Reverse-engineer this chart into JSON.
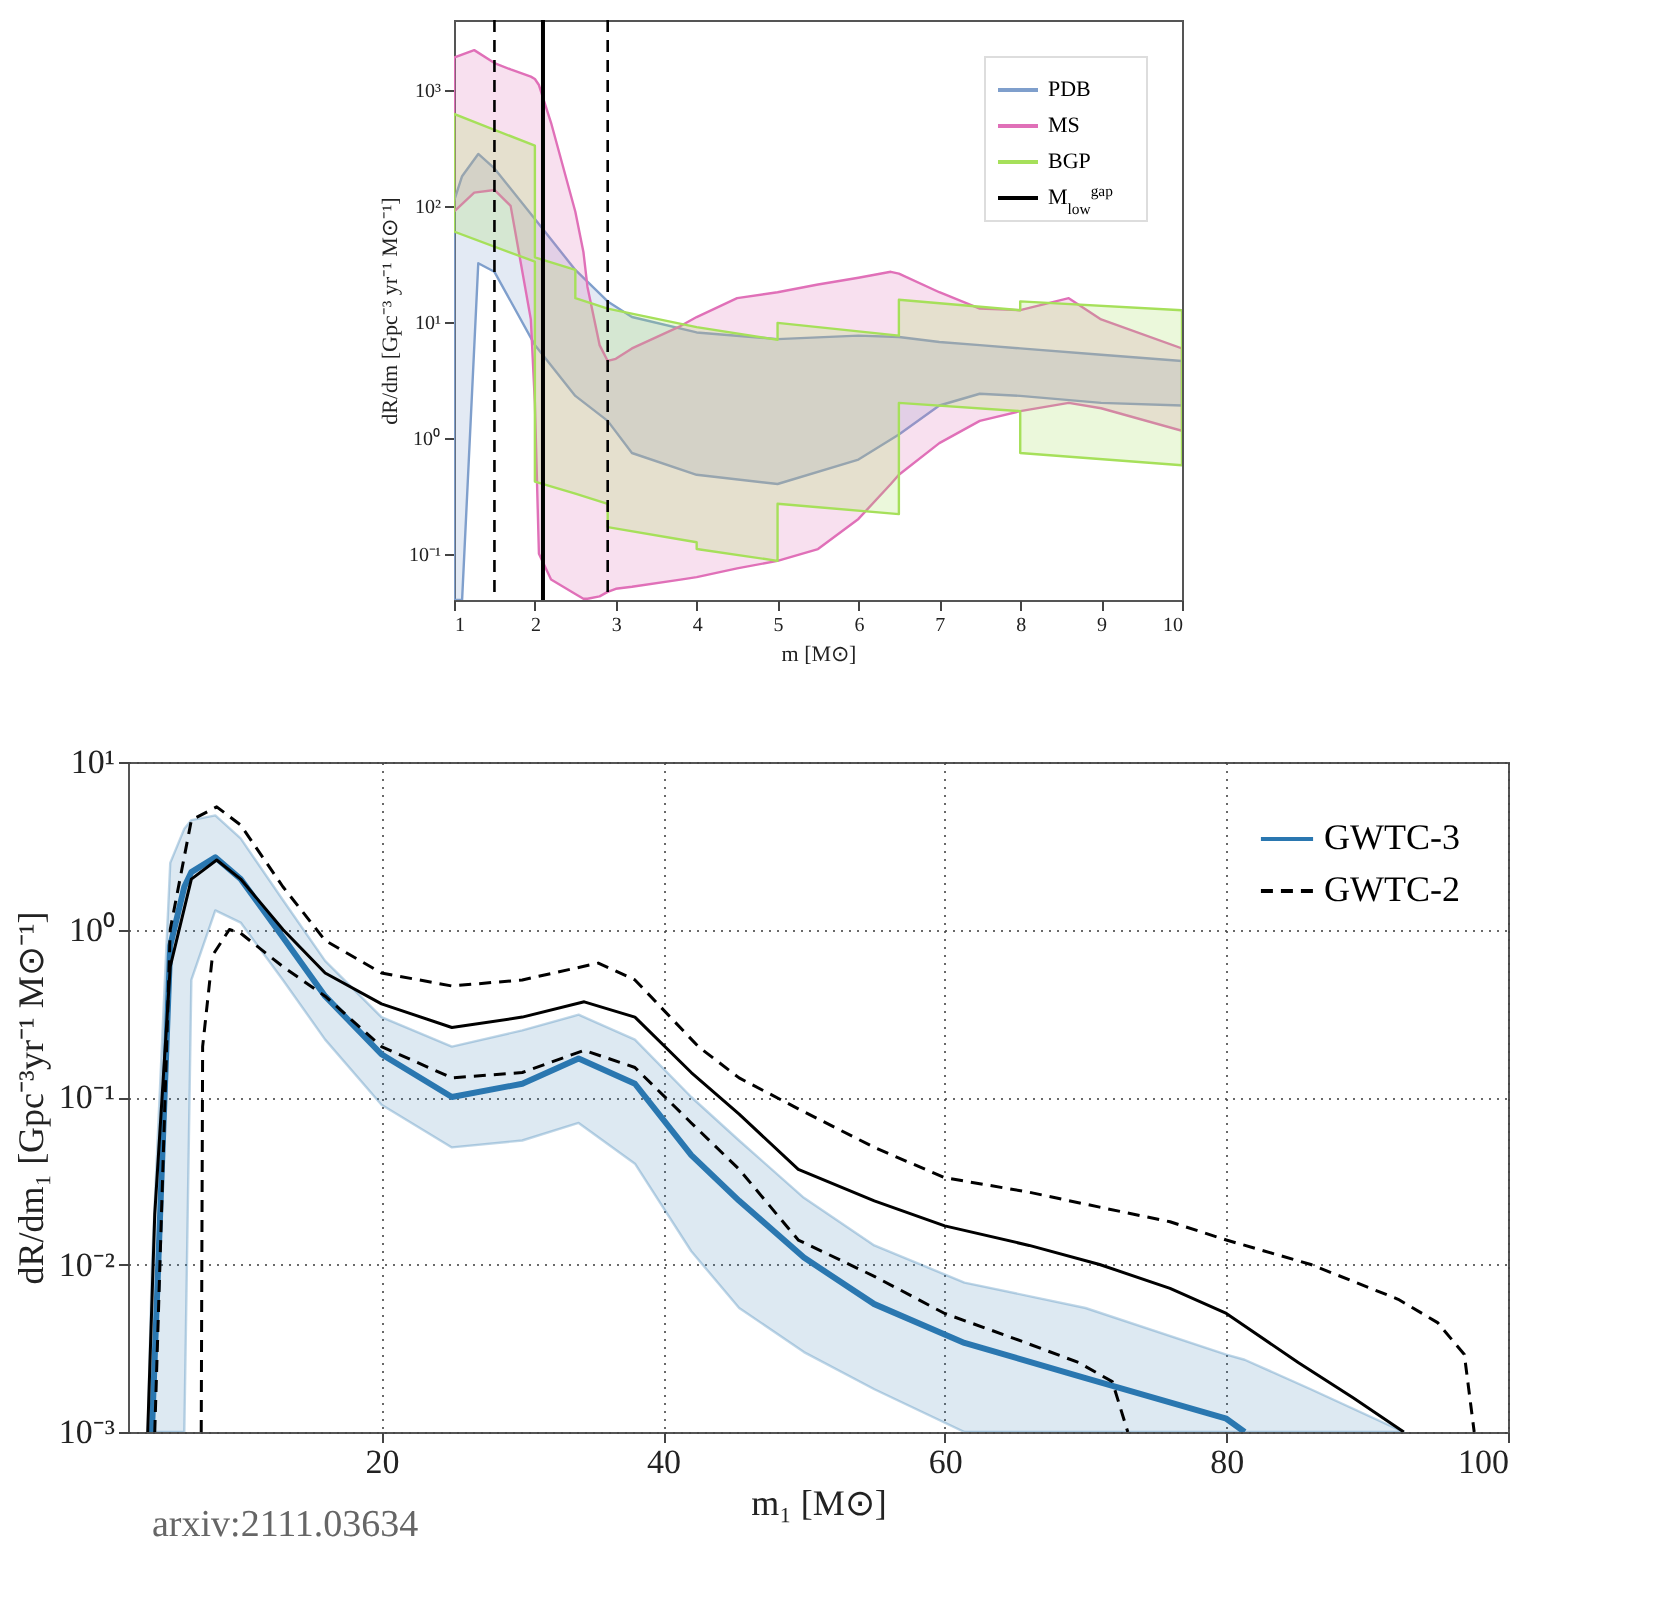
{
  "chart_data": [
    {
      "type": "line",
      "xlabel": "m [M⊙]",
      "ylabel": "dR/dm [Gpc⁻³ yr⁻¹ M⊙⁻¹]",
      "log": "y",
      "grid": false,
      "legend": "top right",
      "xlim": [
        1,
        10
      ],
      "xticks": [
        1,
        2,
        3,
        4,
        5,
        6,
        7,
        8,
        9,
        10
      ],
      "ylim": [
        0.04,
        4000
      ],
      "yticks": [
        {
          "value": 0.1,
          "label": "10⁻¹"
        },
        {
          "value": 1,
          "label": "10⁰"
        },
        {
          "value": 10,
          "label": "10¹"
        },
        {
          "value": 100,
          "label": "10²"
        },
        {
          "value": 1000,
          "label": "10³"
        }
      ],
      "series": [
        {
          "name": "PDB",
          "color": "#7f9fcc",
          "x": [
            1,
            1.1,
            1.3,
            1.5,
            2,
            2.5,
            2.9,
            3.2,
            4,
            5,
            6,
            6.5,
            7,
            7.5,
            8,
            9,
            10
          ],
          "values": [
            null,
            null,
            null,
            null,
            null,
            null,
            null,
            null,
            null,
            null,
            null,
            null,
            null,
            null,
            null,
            null,
            null
          ],
          "upper": [
            110,
            180,
            280,
            210,
            77,
            28,
            15,
            11,
            8.1,
            7.1,
            7.6,
            7.4,
            6.7,
            6.3,
            5.9,
            5.2,
            4.6
          ],
          "lower": [
            0.04,
            0.04,
            32,
            27,
            6.3,
            2.3,
            1.4,
            0.74,
            0.48,
            0.4,
            0.65,
            1.07,
            1.9,
            2.4,
            2.3,
            2.0,
            1.9
          ]
        },
        {
          "name": "MS",
          "color": "#e070b8",
          "x": [
            1,
            1.25,
            1.5,
            1.7,
            1.95,
            2,
            2.05,
            2.2,
            2.5,
            2.6,
            2.65,
            2.8,
            2.9,
            3,
            3.2,
            3.8,
            4,
            4.5,
            5,
            5.5,
            6,
            6.4,
            6.5,
            7,
            7.5,
            8,
            8.6,
            9,
            10
          ],
          "values": [
            null,
            null,
            null,
            null,
            null,
            null,
            null,
            null,
            null,
            null,
            null,
            null,
            null,
            null,
            null,
            null,
            null,
            null,
            null,
            null,
            null,
            null,
            null,
            null,
            null,
            null,
            null,
            null,
            null
          ],
          "upper": [
            1900,
            2200,
            1700,
            1500,
            1300,
            1240,
            1100,
            520,
            89,
            40,
            20,
            6.3,
            4.6,
            4.8,
            5.9,
            9.2,
            11,
            16,
            18,
            21,
            24,
            27,
            26,
            18,
            13,
            12.6,
            16,
            10.5,
            5.9
          ],
          "lower": [
            89,
            130,
            137,
            100,
            10.5,
            2,
            0.1,
            0.06,
            0.045,
            0.041,
            0.041,
            0.043,
            0.047,
            0.05,
            0.052,
            0.06,
            0.063,
            0.075,
            0.087,
            0.11,
            0.2,
            0.4,
            0.48,
            0.9,
            1.4,
            1.7,
            2.0,
            1.8,
            1.15
          ]
        },
        {
          "name": "BGP",
          "color": "#a6e05a",
          "x": [
            1,
            2,
            2,
            2.5,
            2.5,
            2.9,
            2.9,
            4,
            4,
            5,
            5,
            6.5,
            6.5,
            8,
            8,
            10
          ],
          "values": [
            null,
            null,
            null,
            null,
            null,
            null,
            null,
            null,
            null,
            null,
            null,
            null,
            null,
            null,
            null,
            null
          ],
          "upper": [
            620,
            330,
            36,
            28,
            16,
            13,
            13,
            9,
            9,
            7,
            9.8,
            7.6,
            15.5,
            12.6,
            15,
            12.6
          ],
          "lower": [
            60,
            33,
            0.42,
            0.33,
            0.33,
            0.27,
            0.17,
            0.126,
            0.11,
            0.087,
            0.27,
            0.22,
            2.0,
            1.7,
            0.74,
            0.58
          ]
        }
      ],
      "ref_lines": [
        {
          "axis": "x",
          "value": 1.5,
          "color": "#000000",
          "line_style": "dashed"
        },
        {
          "axis": "x",
          "value": 2.1,
          "label": "M$_{low}$$^{gap}$",
          "color": "#000000",
          "line_style": "solid"
        },
        {
          "axis": "x",
          "value": 2.9,
          "color": "#000000",
          "line_style": "dashed"
        }
      ]
    },
    {
      "type": "line",
      "xlabel": "m₁ [M⊙]",
      "ylabel": "dR/dm₁ [Gpc⁻³yr⁻¹ M⊙⁻¹]",
      "log": "y",
      "grid": true,
      "legend": "top right",
      "xlim": [
        2,
        100
      ],
      "xticks": [
        20,
        40,
        60,
        80,
        100
      ],
      "ylim": [
        0.001,
        10
      ],
      "yticks": [
        {
          "value": 0.001,
          "label": "10⁻³"
        },
        {
          "value": 0.01,
          "label": "10⁻²"
        },
        {
          "value": 0.1,
          "label": "10⁻¹"
        },
        {
          "value": 1,
          "label": "10⁰"
        },
        {
          "value": 10,
          "label": "10¹"
        }
      ],
      "annotations": [
        "arxiv:2111.03634"
      ],
      "series": [
        {
          "name": "GWTC-3",
          "color": "#2a77b0",
          "line_style": "solid",
          "x": [
            3.4,
            3.7,
            5,
            6,
            6.5,
            8.2,
            10,
            13,
            16,
            20,
            25,
            30,
            34,
            38,
            42,
            45.4,
            50,
            55,
            61.4,
            70,
            80,
            81.3,
            86,
            92.6
          ],
          "values": [
            null,
            0.001,
            0.8,
            1.8,
            2.2,
            2.7,
            2.0,
            0.9,
            0.4,
            0.18,
            0.1,
            0.12,
            0.17,
            0.12,
            0.045,
            0.024,
            0.011,
            0.0058,
            0.0034,
            0.0021,
            0.0012,
            0.001,
            null,
            null
          ],
          "upper": [
            0.001,
            0.01,
            2.5,
            4.0,
            4.5,
            4.8,
            3.5,
            1.5,
            0.65,
            0.3,
            0.2,
            0.25,
            0.31,
            0.22,
            0.1,
            0.055,
            0.025,
            0.013,
            0.0078,
            0.0055,
            0.0029,
            0.0027,
            0.0018,
            0.001
          ],
          "lower": [
            0.001,
            0.001,
            0.001,
            0.001,
            0.5,
            1.3,
            1.1,
            0.5,
            0.22,
            0.09,
            0.05,
            0.055,
            0.07,
            0.04,
            0.012,
            0.0055,
            0.003,
            0.0018,
            0.001,
            0.001,
            0.001,
            0.001,
            0.001,
            0.001
          ]
        },
        {
          "name": "GWTC-2",
          "color": "#000000",
          "line_style": "dashed",
          "x": [
            3.9,
            5,
            6.5,
            8.3,
            10,
            13,
            16,
            20,
            25,
            30,
            35.4,
            38,
            42.5,
            45.4,
            49.6,
            55,
            60,
            66,
            71,
            76,
            80,
            86,
            92.2,
            95,
            96.9,
            97.6
          ],
          "values": [
            0.001,
            1.0,
            4.5,
            5.4,
            4.2,
            1.8,
            0.86,
            0.55,
            0.46,
            0.5,
            0.63,
            0.5,
            0.2,
            0.13,
            0.085,
            0.05,
            0.033,
            0.027,
            0.022,
            0.018,
            0.014,
            0.01,
            0.0062,
            0.0045,
            0.0029,
            0.001
          ]
        },
        {
          "color": "#000000",
          "line_style": "dashed",
          "x": [
            7.2,
            7.3,
            8,
            9.2,
            10,
            13,
            16,
            20,
            25,
            30,
            34.4,
            38,
            42,
            45.4,
            49.6,
            55,
            60,
            65,
            69.5,
            71.9,
            73
          ],
          "values": [
            0.001,
            0.2,
            0.7,
            1.0,
            0.95,
            0.6,
            0.4,
            0.2,
            0.13,
            0.14,
            0.19,
            0.15,
            0.07,
            0.037,
            0.014,
            0.0085,
            0.0051,
            0.0036,
            0.0026,
            0.002,
            0.001
          ]
        },
        {
          "color": "#000000",
          "line_style": "solid",
          "x": [
            3.4,
            3.9,
            5,
            6.5,
            8.3,
            10,
            13,
            16,
            20,
            25,
            30,
            34.4,
            38,
            42,
            45.4,
            49.6,
            55,
            60,
            66,
            71,
            76,
            80,
            85.1,
            89,
            92.6
          ],
          "values": [
            0.001,
            0.02,
            0.6,
            2.0,
            2.6,
            2.0,
            1.0,
            0.55,
            0.36,
            0.26,
            0.3,
            0.37,
            0.3,
            0.14,
            0.079,
            0.037,
            0.024,
            0.017,
            0.013,
            0.01,
            0.0072,
            0.0051,
            0.0026,
            0.0016,
            0.001
          ]
        }
      ]
    }
  ]
}
